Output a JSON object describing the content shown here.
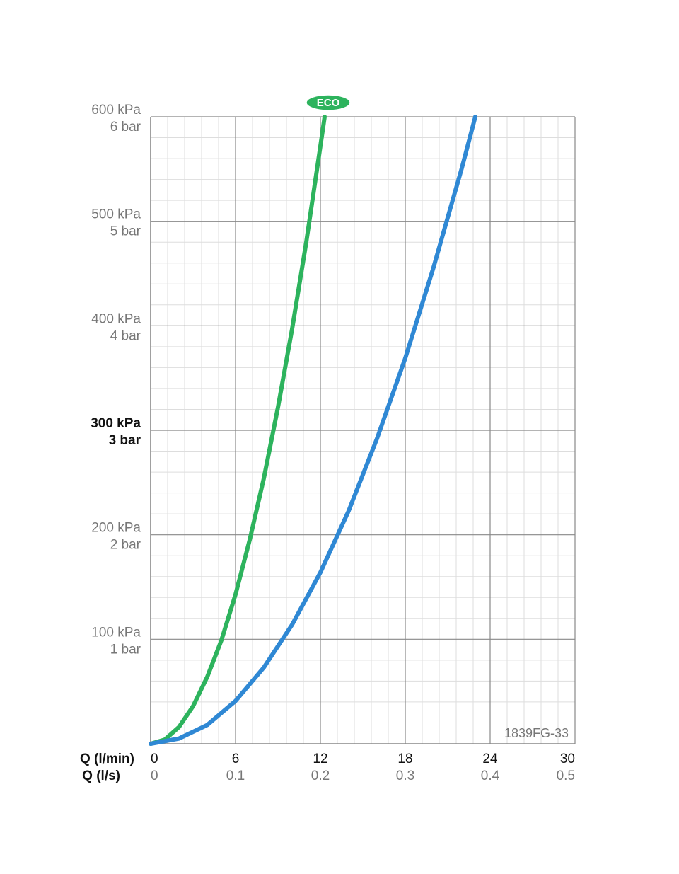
{
  "chart_data": {
    "type": "line",
    "xlabel": "Q (l/min)",
    "xlim": [
      0,
      30
    ],
    "xticks": [
      0,
      6,
      12,
      18,
      24,
      30
    ],
    "x2label": "Q (l/s)",
    "x2lim": [
      0,
      0.5
    ],
    "x2ticks": [
      0,
      0.1,
      0.2,
      0.3,
      0.4,
      0.5
    ],
    "ylim": [
      0,
      600
    ],
    "yticks": [
      {
        "value": 100,
        "label": "100 kPa"
      },
      {
        "value": 200,
        "label": "200 kPa"
      },
      {
        "value": 300,
        "label": "300 kPa"
      },
      {
        "value": 400,
        "label": "400 kPa"
      },
      {
        "value": 500,
        "label": "500 kPa"
      },
      {
        "value": 600,
        "label": "600 kPa"
      }
    ],
    "ybar_labels": [
      "1 bar",
      "2 bar",
      "3 bar",
      "4 bar",
      "5 bar",
      "6 bar"
    ],
    "emphasized_ytick": 300,
    "grid": true,
    "code_label": "1839FG-33",
    "series": [
      {
        "name": "ECO",
        "color": "#2db35d",
        "x": [
          0,
          1,
          2,
          3,
          4,
          5,
          6,
          7,
          8,
          9,
          10,
          11,
          12,
          12.3
        ],
        "values": [
          0,
          4,
          16,
          36,
          64,
          99,
          143,
          195,
          254,
          322,
          397,
          480,
          572,
          600
        ]
      },
      {
        "color": "#2f88d4",
        "x": [
          0,
          2,
          4,
          6,
          8,
          10,
          12,
          14,
          16,
          18,
          20,
          22,
          22.95
        ],
        "values": [
          0,
          5,
          18,
          41,
          73,
          114,
          164,
          223,
          292,
          369,
          456,
          551,
          600
        ]
      }
    ]
  }
}
